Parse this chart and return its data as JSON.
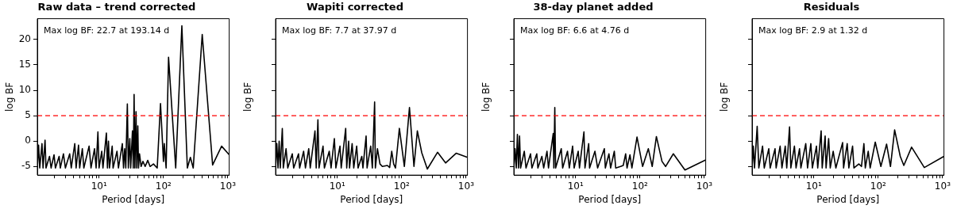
{
  "chart_data": [
    {
      "type": "line",
      "title": "Raw data – trend corrected",
      "xlabel": "Period [days]",
      "ylabel": "log BF",
      "color": "#000000",
      "marker": "none",
      "line_style": "solid",
      "log": "x",
      "legend": false,
      "grid": false,
      "x": [
        1.1,
        1.15,
        1.2,
        1.3,
        1.35,
        1.45,
        1.5,
        1.7,
        1.8,
        2,
        2.1,
        2.4,
        2.5,
        2.8,
        3,
        3.5,
        3.7,
        4.2,
        4.4,
        4.8,
        5,
        5.5,
        5.8,
        7,
        7.5,
        8.5,
        9,
        9.6,
        10,
        11,
        11.5,
        13,
        13.5,
        14,
        14.5,
        16,
        16.5,
        19,
        20,
        23,
        24,
        25,
        26,
        27.5,
        28.5,
        30,
        31,
        33,
        34,
        35,
        36,
        37.5,
        38.5,
        40,
        41,
        42.5,
        45,
        48,
        52,
        57,
        62,
        70,
        80,
        90,
        100,
        103,
        110,
        120,
        155,
        193.14,
        235,
        262,
        290,
        400,
        580,
        800,
        1050
      ],
      "values": [
        -5.3,
        -0.8,
        -5.3,
        -0.5,
        -5.3,
        0.2,
        -5.3,
        -3,
        -5.3,
        -2.7,
        -5.3,
        -3,
        -5.3,
        -2.5,
        -5.3,
        -2.5,
        -5.3,
        -0.5,
        -5.3,
        -0.8,
        -5.3,
        -1.5,
        -5.3,
        -1,
        -5.3,
        -1.5,
        -5.3,
        1.8,
        -5.3,
        -2,
        -5.3,
        1.6,
        -5.3,
        0,
        -5.3,
        -1,
        -5.3,
        -2,
        -5.3,
        -0.5,
        -5.3,
        -1.5,
        -5.3,
        7.3,
        -5.3,
        0.5,
        -5.3,
        2,
        -5.3,
        9.2,
        -5.3,
        5.8,
        -5.3,
        3,
        -5.3,
        -2.5,
        -5,
        -4,
        -5,
        -3.8,
        -5,
        -4.5,
        -5.3,
        7.4,
        -4,
        -0.5,
        -5.3,
        16.5,
        -5.3,
        22.7,
        -5.3,
        -3.2,
        -5.3,
        21,
        -4.7,
        -1,
        -2.7
      ],
      "xlim": [
        1.1,
        1050
      ],
      "ylim": [
        -6.7,
        24.1
      ],
      "xticks": [
        {
          "value": 2,
          "label": null
        },
        {
          "value": 3,
          "label": null
        },
        {
          "value": 4,
          "label": null
        },
        {
          "value": 5,
          "label": null
        },
        {
          "value": 6,
          "label": null
        },
        {
          "value": 7,
          "label": null
        },
        {
          "value": 8,
          "label": null
        },
        {
          "value": 9,
          "label": null
        },
        {
          "value": 10,
          "label": "10¹"
        },
        {
          "value": 20,
          "label": null
        },
        {
          "value": 30,
          "label": null
        },
        {
          "value": 40,
          "label": null
        },
        {
          "value": 50,
          "label": null
        },
        {
          "value": 60,
          "label": null
        },
        {
          "value": 70,
          "label": null
        },
        {
          "value": 80,
          "label": null
        },
        {
          "value": 90,
          "label": null
        },
        {
          "value": 100,
          "label": "10²"
        },
        {
          "value": 200,
          "label": null
        },
        {
          "value": 300,
          "label": null
        },
        {
          "value": 400,
          "label": null
        },
        {
          "value": 500,
          "label": null
        },
        {
          "value": 600,
          "label": null
        },
        {
          "value": 700,
          "label": null
        },
        {
          "value": 800,
          "label": null
        },
        {
          "value": 900,
          "label": null
        },
        {
          "value": 1000,
          "label": "10³"
        }
      ],
      "yticks": [
        -5,
        0,
        5,
        10,
        15,
        20
      ],
      "ref_lines": [
        {
          "axis": "y",
          "value": 5,
          "color": "#ff0000",
          "line_style": "dashed"
        }
      ],
      "annotations": [
        "Max log BF: 22.7 at 193.14 d"
      ]
    },
    {
      "type": "line",
      "title": "Wapiti corrected",
      "xlabel": "Period [days]",
      "ylabel": "log BF",
      "color": "#000000",
      "marker": "none",
      "line_style": "solid",
      "log": "x",
      "legend": false,
      "grid": false,
      "tick_labels": "x",
      "x": [
        1.1,
        1.15,
        1.2,
        1.25,
        1.3,
        1.4,
        1.45,
        1.6,
        1.7,
        2,
        2.1,
        2.5,
        2.6,
        3,
        3.2,
        3.6,
        3.8,
        4.5,
        4.7,
        5,
        5.2,
        6,
        6.3,
        7.5,
        8,
        9,
        9.5,
        11,
        11.5,
        13.5,
        14,
        15,
        15.5,
        17,
        18,
        20,
        21,
        24,
        25,
        28,
        29,
        33,
        35,
        37.97,
        39,
        42,
        46,
        50,
        60,
        65,
        70,
        75,
        80,
        92,
        110,
        132,
        155,
        175,
        205,
        250,
        360,
        480,
        700,
        1050
      ],
      "values": [
        -5.3,
        -0.5,
        -5.3,
        0,
        -5.3,
        2.5,
        -5.3,
        -1.5,
        -5.3,
        -2.5,
        -5.3,
        -2.5,
        -5.3,
        -2,
        -5.3,
        -1.5,
        -5.3,
        2,
        -5.3,
        4.2,
        -5.3,
        -1,
        -5.3,
        -2,
        -5.3,
        0.5,
        -5.3,
        -1,
        -5.3,
        2.5,
        -5.3,
        0,
        -5.3,
        -0.5,
        -5.3,
        -1,
        -5.3,
        -3,
        -5.3,
        1,
        -5.3,
        -1,
        -5.3,
        7.7,
        -5.3,
        -1.5,
        -4.5,
        -5,
        -4.8,
        -5.2,
        -2,
        -4.5,
        -5.3,
        2.5,
        -5,
        6.6,
        -5,
        2,
        -2.3,
        -5.5,
        -2.2,
        -4.3,
        -2.4,
        -3.2
      ],
      "xlim": [
        1.1,
        1050
      ],
      "ylim": [
        -6.7,
        24.1
      ],
      "xticks": [
        {
          "value": 2,
          "label": null
        },
        {
          "value": 3,
          "label": null
        },
        {
          "value": 4,
          "label": null
        },
        {
          "value": 5,
          "label": null
        },
        {
          "value": 6,
          "label": null
        },
        {
          "value": 7,
          "label": null
        },
        {
          "value": 8,
          "label": null
        },
        {
          "value": 9,
          "label": null
        },
        {
          "value": 10,
          "label": "10¹"
        },
        {
          "value": 20,
          "label": null
        },
        {
          "value": 30,
          "label": null
        },
        {
          "value": 40,
          "label": null
        },
        {
          "value": 50,
          "label": null
        },
        {
          "value": 60,
          "label": null
        },
        {
          "value": 70,
          "label": null
        },
        {
          "value": 80,
          "label": null
        },
        {
          "value": 90,
          "label": null
        },
        {
          "value": 100,
          "label": "10²"
        },
        {
          "value": 200,
          "label": null
        },
        {
          "value": 300,
          "label": null
        },
        {
          "value": 400,
          "label": null
        },
        {
          "value": 500,
          "label": null
        },
        {
          "value": 600,
          "label": null
        },
        {
          "value": 700,
          "label": null
        },
        {
          "value": 800,
          "label": null
        },
        {
          "value": 900,
          "label": null
        },
        {
          "value": 1000,
          "label": "10³"
        }
      ],
      "yticks": [
        -5,
        0,
        5,
        10,
        15,
        20
      ],
      "ref_lines": [
        {
          "axis": "y",
          "value": 5,
          "color": "#ff0000",
          "line_style": "dashed"
        }
      ],
      "annotations": [
        "Max log BF: 7.7 at 37.97 d"
      ]
    },
    {
      "type": "line",
      "title": "38-day planet added",
      "xlabel": "Period [days]",
      "ylabel": "log BF",
      "color": "#000000",
      "marker": "none",
      "line_style": "solid",
      "log": "x",
      "legend": false,
      "grid": false,
      "tick_labels": "x",
      "x": [
        1.1,
        1.15,
        1.2,
        1.25,
        1.3,
        1.35,
        1.4,
        1.6,
        1.7,
        2,
        2.1,
        2.5,
        2.6,
        3,
        3.2,
        3.6,
        3.8,
        4.5,
        4.6,
        4.76,
        4.9,
        6,
        6.3,
        7.5,
        8,
        9,
        9.5,
        11,
        11.5,
        13.5,
        14,
        16,
        16.5,
        20,
        22,
        28,
        29,
        33,
        35,
        40,
        42,
        50,
        55,
        60,
        63,
        70,
        75,
        90,
        110,
        135,
        155,
        180,
        220,
        250,
        330,
        500,
        1050
      ],
      "values": [
        -5.3,
        -1.5,
        -5.3,
        1.3,
        -5.3,
        1,
        -5.3,
        -2,
        -5.3,
        -2.5,
        -5.3,
        -2.5,
        -5.3,
        -3,
        -5.3,
        -2,
        -5.3,
        1.5,
        -5.3,
        6.6,
        -5.3,
        -1.5,
        -5.3,
        -2,
        -5.3,
        -1,
        -5.3,
        -2,
        -5.3,
        1.8,
        -5.3,
        -0.5,
        -5.3,
        -2,
        -5.3,
        -1.5,
        -5.3,
        -2.5,
        -5.3,
        -2,
        -5.3,
        -5,
        -4.8,
        -2.5,
        -5.3,
        -2.7,
        -5.3,
        0.8,
        -5,
        -1.5,
        -5,
        0.9,
        -4,
        -5,
        -2.5,
        -5.7,
        -3.7
      ],
      "xlim": [
        1.1,
        1050
      ],
      "ylim": [
        -6.7,
        24.1
      ],
      "xticks": [
        {
          "value": 2,
          "label": null
        },
        {
          "value": 3,
          "label": null
        },
        {
          "value": 4,
          "label": null
        },
        {
          "value": 5,
          "label": null
        },
        {
          "value": 6,
          "label": null
        },
        {
          "value": 7,
          "label": null
        },
        {
          "value": 8,
          "label": null
        },
        {
          "value": 9,
          "label": null
        },
        {
          "value": 10,
          "label": "10¹"
        },
        {
          "value": 20,
          "label": null
        },
        {
          "value": 30,
          "label": null
        },
        {
          "value": 40,
          "label": null
        },
        {
          "value": 50,
          "label": null
        },
        {
          "value": 60,
          "label": null
        },
        {
          "value": 70,
          "label": null
        },
        {
          "value": 80,
          "label": null
        },
        {
          "value": 90,
          "label": null
        },
        {
          "value": 100,
          "label": "10²"
        },
        {
          "value": 200,
          "label": null
        },
        {
          "value": 300,
          "label": null
        },
        {
          "value": 400,
          "label": null
        },
        {
          "value": 500,
          "label": null
        },
        {
          "value": 600,
          "label": null
        },
        {
          "value": 700,
          "label": null
        },
        {
          "value": 800,
          "label": null
        },
        {
          "value": 900,
          "label": null
        },
        {
          "value": 1000,
          "label": "10³"
        }
      ],
      "yticks": [
        -5,
        0,
        5,
        10,
        15,
        20
      ],
      "ref_lines": [
        {
          "axis": "y",
          "value": 5,
          "color": "#ff0000",
          "line_style": "dashed"
        }
      ],
      "annotations": [
        "Max log BF: 6.6 at 4.76 d"
      ]
    },
    {
      "type": "line",
      "title": "Residuals",
      "xlabel": "Period [days]",
      "ylabel": "log BF",
      "color": "#000000",
      "marker": "none",
      "line_style": "solid",
      "log": "x",
      "legend": false,
      "grid": false,
      "tick_labels": "x",
      "x": [
        1.1,
        1.15,
        1.2,
        1.32,
        1.4,
        1.6,
        1.7,
        2,
        2.1,
        2.5,
        2.6,
        3,
        3.2,
        3.6,
        3.8,
        4.2,
        4.4,
        5,
        5.3,
        6,
        6.3,
        7.5,
        8,
        9,
        9.5,
        11,
        11.5,
        13,
        13.5,
        15,
        15.5,
        17,
        18,
        20,
        22,
        28,
        29,
        33,
        35,
        40,
        42,
        50,
        55,
        60,
        63,
        70,
        75,
        90,
        110,
        135,
        155,
        180,
        220,
        250,
        330,
        520,
        1050
      ],
      "values": [
        -5.3,
        -1,
        -5.3,
        2.9,
        -5.3,
        -1,
        -5.3,
        -1.5,
        -5.3,
        -1.5,
        -5.3,
        -1,
        -5.3,
        -1,
        -5.3,
        2.8,
        -5.3,
        -1,
        -5.3,
        -1.5,
        -5.3,
        -0.5,
        -5.3,
        -0.5,
        -5.3,
        -1,
        -5.3,
        2,
        -5.3,
        1,
        -5.3,
        0.5,
        -5.3,
        -2,
        -5.3,
        -0.3,
        -5.3,
        -0.5,
        -5.3,
        -1,
        -5.3,
        -4.5,
        -5,
        -0.5,
        -5.3,
        -2,
        -5.3,
        -0.2,
        -5,
        -0.6,
        -5,
        2.2,
        -3,
        -4.8,
        -1.2,
        -5.2,
        -3
      ],
      "xlim": [
        1.1,
        1050
      ],
      "ylim": [
        -6.7,
        24.1
      ],
      "xticks": [
        {
          "value": 2,
          "label": null
        },
        {
          "value": 3,
          "label": null
        },
        {
          "value": 4,
          "label": null
        },
        {
          "value": 5,
          "label": null
        },
        {
          "value": 6,
          "label": null
        },
        {
          "value": 7,
          "label": null
        },
        {
          "value": 8,
          "label": null
        },
        {
          "value": 9,
          "label": null
        },
        {
          "value": 10,
          "label": "10¹"
        },
        {
          "value": 20,
          "label": null
        },
        {
          "value": 30,
          "label": null
        },
        {
          "value": 40,
          "label": null
        },
        {
          "value": 50,
          "label": null
        },
        {
          "value": 60,
          "label": null
        },
        {
          "value": 70,
          "label": null
        },
        {
          "value": 80,
          "label": null
        },
        {
          "value": 90,
          "label": null
        },
        {
          "value": 100,
          "label": "10²"
        },
        {
          "value": 200,
          "label": null
        },
        {
          "value": 300,
          "label": null
        },
        {
          "value": 400,
          "label": null
        },
        {
          "value": 500,
          "label": null
        },
        {
          "value": 600,
          "label": null
        },
        {
          "value": 700,
          "label": null
        },
        {
          "value": 800,
          "label": null
        },
        {
          "value": 900,
          "label": null
        },
        {
          "value": 1000,
          "label": "10³"
        }
      ],
      "yticks": [
        -5,
        0,
        5,
        10,
        15,
        20
      ],
      "ref_lines": [
        {
          "axis": "y",
          "value": 5,
          "color": "#ff0000",
          "line_style": "dashed"
        }
      ],
      "annotations": [
        "Max log BF: 2.9 at 1.32 d"
      ]
    }
  ]
}
